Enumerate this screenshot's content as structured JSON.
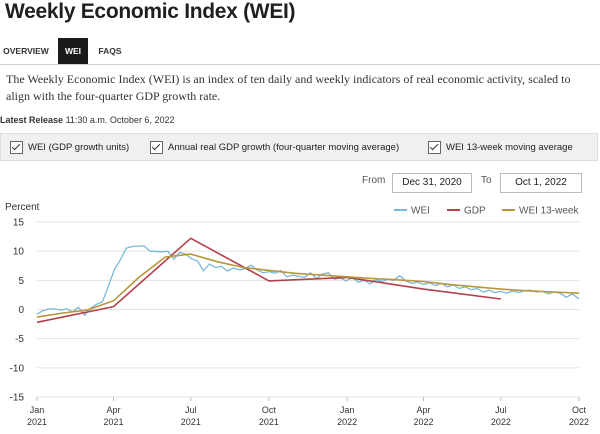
{
  "page": {
    "title": "Weekly Economic Index (WEI)",
    "tabs": [
      {
        "label": "OVERVIEW",
        "active": false
      },
      {
        "label": "WEI",
        "active": true
      },
      {
        "label": "FAQS",
        "active": false
      }
    ],
    "description": "The Weekly Economic Index (WEI) is an index of ten daily and weekly indicators of real economic activity, scaled to align with the four-quarter GDP growth rate.",
    "release_label": "Latest Release",
    "release_value": "11:30 a.m. October 6, 2022"
  },
  "toggles": [
    {
      "label": "WEI (GDP growth units)",
      "checked": true
    },
    {
      "label": "Annual real GDP growth (four-quarter moving average)",
      "checked": true
    },
    {
      "label": "WEI 13-week moving average",
      "checked": true
    }
  ],
  "range": {
    "from_label": "From",
    "from_value": "Dec 31, 2020",
    "to_label": "To",
    "to_value": "Oct 1, 2022"
  },
  "colors": {
    "wei": "#7ab8dc",
    "gdp": "#b3404a",
    "wei13": "#b8963a",
    "active_tab": "#1b1b1b",
    "grid": "#e3e3e3"
  },
  "chart_data": {
    "type": "line",
    "ylabel": "Percent",
    "ylim": [
      -15,
      15
    ],
    "yticks": [
      15,
      10,
      5,
      0,
      -5,
      -10,
      -15
    ],
    "xlim": [
      "2021-01-01",
      "2022-10-01"
    ],
    "xticks": [
      {
        "month": "Jan",
        "year": "2021",
        "date": "2021-01-01"
      },
      {
        "month": "Apr",
        "year": "2021",
        "date": "2021-04-01"
      },
      {
        "month": "Jul",
        "year": "2021",
        "date": "2021-07-01"
      },
      {
        "month": "Oct",
        "year": "2021",
        "date": "2021-10-01"
      },
      {
        "month": "Jan",
        "year": "2022",
        "date": "2022-01-01"
      },
      {
        "month": "Apr",
        "year": "2022",
        "date": "2022-04-01"
      },
      {
        "month": "Jul",
        "year": "2022",
        "date": "2022-07-01"
      },
      {
        "month": "Oct",
        "year": "2022",
        "date": "2022-10-01"
      }
    ],
    "legend_position": "top-right",
    "series": [
      {
        "name": "WEI",
        "key": "wei",
        "points": [
          [
            "2021-01-01",
            -0.8
          ],
          [
            "2021-01-08",
            -0.2
          ],
          [
            "2021-01-15",
            0.1
          ],
          [
            "2021-01-22",
            0.1
          ],
          [
            "2021-01-29",
            -0.1
          ],
          [
            "2021-02-05",
            0.1
          ],
          [
            "2021-02-12",
            -0.4
          ],
          [
            "2021-02-19",
            0.4
          ],
          [
            "2021-02-26",
            -1.0
          ],
          [
            "2021-03-05",
            0.2
          ],
          [
            "2021-03-12",
            0.9
          ],
          [
            "2021-03-19",
            1.3
          ],
          [
            "2021-03-26",
            4.0
          ],
          [
            "2021-04-02",
            6.8
          ],
          [
            "2021-04-09",
            8.5
          ],
          [
            "2021-04-16",
            10.5
          ],
          [
            "2021-04-23",
            10.8
          ],
          [
            "2021-05-07",
            10.9
          ],
          [
            "2021-05-14",
            10.0
          ],
          [
            "2021-05-28",
            9.9
          ],
          [
            "2021-06-04",
            10.0
          ],
          [
            "2021-06-11",
            8.6
          ],
          [
            "2021-06-18",
            9.8
          ],
          [
            "2021-06-25",
            9.5
          ],
          [
            "2021-07-02",
            8.7
          ],
          [
            "2021-07-09",
            8.3
          ],
          [
            "2021-07-16",
            6.6
          ],
          [
            "2021-07-23",
            7.8
          ],
          [
            "2021-07-30",
            7.2
          ],
          [
            "2021-08-06",
            7.4
          ],
          [
            "2021-08-13",
            6.6
          ],
          [
            "2021-08-20",
            7.1
          ],
          [
            "2021-08-27",
            6.8
          ],
          [
            "2021-09-03",
            7.0
          ],
          [
            "2021-09-10",
            7.6
          ],
          [
            "2021-09-17",
            6.8
          ],
          [
            "2021-09-24",
            6.3
          ],
          [
            "2021-10-01",
            6.5
          ],
          [
            "2021-10-08",
            6.2
          ],
          [
            "2021-10-15",
            6.7
          ],
          [
            "2021-10-22",
            5.6
          ],
          [
            "2021-10-29",
            5.9
          ],
          [
            "2021-11-05",
            5.7
          ],
          [
            "2021-11-12",
            5.5
          ],
          [
            "2021-11-19",
            6.3
          ],
          [
            "2021-11-26",
            5.3
          ],
          [
            "2021-12-03",
            6.1
          ],
          [
            "2021-12-10",
            6.3
          ],
          [
            "2021-12-17",
            5.2
          ],
          [
            "2021-12-24",
            5.4
          ],
          [
            "2021-12-31",
            4.9
          ],
          [
            "2022-01-07",
            5.5
          ],
          [
            "2022-01-14",
            4.7
          ],
          [
            "2022-01-21",
            5.0
          ],
          [
            "2022-01-28",
            4.4
          ],
          [
            "2022-02-04",
            5.1
          ],
          [
            "2022-02-11",
            4.8
          ],
          [
            "2022-02-18",
            5.2
          ],
          [
            "2022-02-25",
            5.0
          ],
          [
            "2022-03-04",
            5.8
          ],
          [
            "2022-03-11",
            4.9
          ],
          [
            "2022-03-18",
            4.5
          ],
          [
            "2022-03-25",
            4.7
          ],
          [
            "2022-04-01",
            4.3
          ],
          [
            "2022-04-08",
            4.6
          ],
          [
            "2022-04-15",
            4.1
          ],
          [
            "2022-04-22",
            4.5
          ],
          [
            "2022-04-29",
            3.9
          ],
          [
            "2022-05-06",
            4.2
          ],
          [
            "2022-05-13",
            3.6
          ],
          [
            "2022-05-20",
            3.9
          ],
          [
            "2022-05-27",
            3.4
          ],
          [
            "2022-06-03",
            3.6
          ],
          [
            "2022-06-10",
            3.0
          ],
          [
            "2022-06-17",
            3.3
          ],
          [
            "2022-06-24",
            2.9
          ],
          [
            "2022-07-01",
            3.1
          ],
          [
            "2022-07-08",
            2.8
          ],
          [
            "2022-07-15",
            3.2
          ],
          [
            "2022-07-22",
            2.9
          ],
          [
            "2022-07-29",
            3.2
          ],
          [
            "2022-08-05",
            3.3
          ],
          [
            "2022-08-12",
            3.0
          ],
          [
            "2022-08-19",
            3.1
          ],
          [
            "2022-08-26",
            2.7
          ],
          [
            "2022-09-02",
            3.0
          ],
          [
            "2022-09-09",
            2.8
          ],
          [
            "2022-09-16",
            2.1
          ],
          [
            "2022-09-23",
            2.7
          ],
          [
            "2022-10-01",
            1.8
          ]
        ]
      },
      {
        "name": "GDP",
        "key": "gdp",
        "points": [
          [
            "2021-01-01",
            -2.2
          ],
          [
            "2021-04-01",
            0.5
          ],
          [
            "2021-07-01",
            12.2
          ],
          [
            "2021-10-01",
            4.9
          ],
          [
            "2022-01-01",
            5.5
          ],
          [
            "2022-04-01",
            3.5
          ],
          [
            "2022-07-01",
            1.8
          ]
        ]
      },
      {
        "name": "WEI 13-week",
        "key": "wei13",
        "points": [
          [
            "2021-01-01",
            -1.3
          ],
          [
            "2021-02-01",
            -0.6
          ],
          [
            "2021-03-01",
            -0.1
          ],
          [
            "2021-04-01",
            1.5
          ],
          [
            "2021-05-01",
            5.5
          ],
          [
            "2021-06-01",
            9.0
          ],
          [
            "2021-07-01",
            9.5
          ],
          [
            "2021-08-01",
            8.2
          ],
          [
            "2021-09-01",
            7.2
          ],
          [
            "2021-10-01",
            6.7
          ],
          [
            "2021-11-01",
            6.2
          ],
          [
            "2021-12-01",
            5.9
          ],
          [
            "2022-01-01",
            5.6
          ],
          [
            "2022-02-01",
            5.3
          ],
          [
            "2022-03-01",
            5.1
          ],
          [
            "2022-04-01",
            4.8
          ],
          [
            "2022-05-01",
            4.3
          ],
          [
            "2022-06-01",
            3.9
          ],
          [
            "2022-07-01",
            3.5
          ],
          [
            "2022-08-01",
            3.2
          ],
          [
            "2022-09-01",
            3.0
          ],
          [
            "2022-10-01",
            2.8
          ]
        ]
      }
    ]
  }
}
